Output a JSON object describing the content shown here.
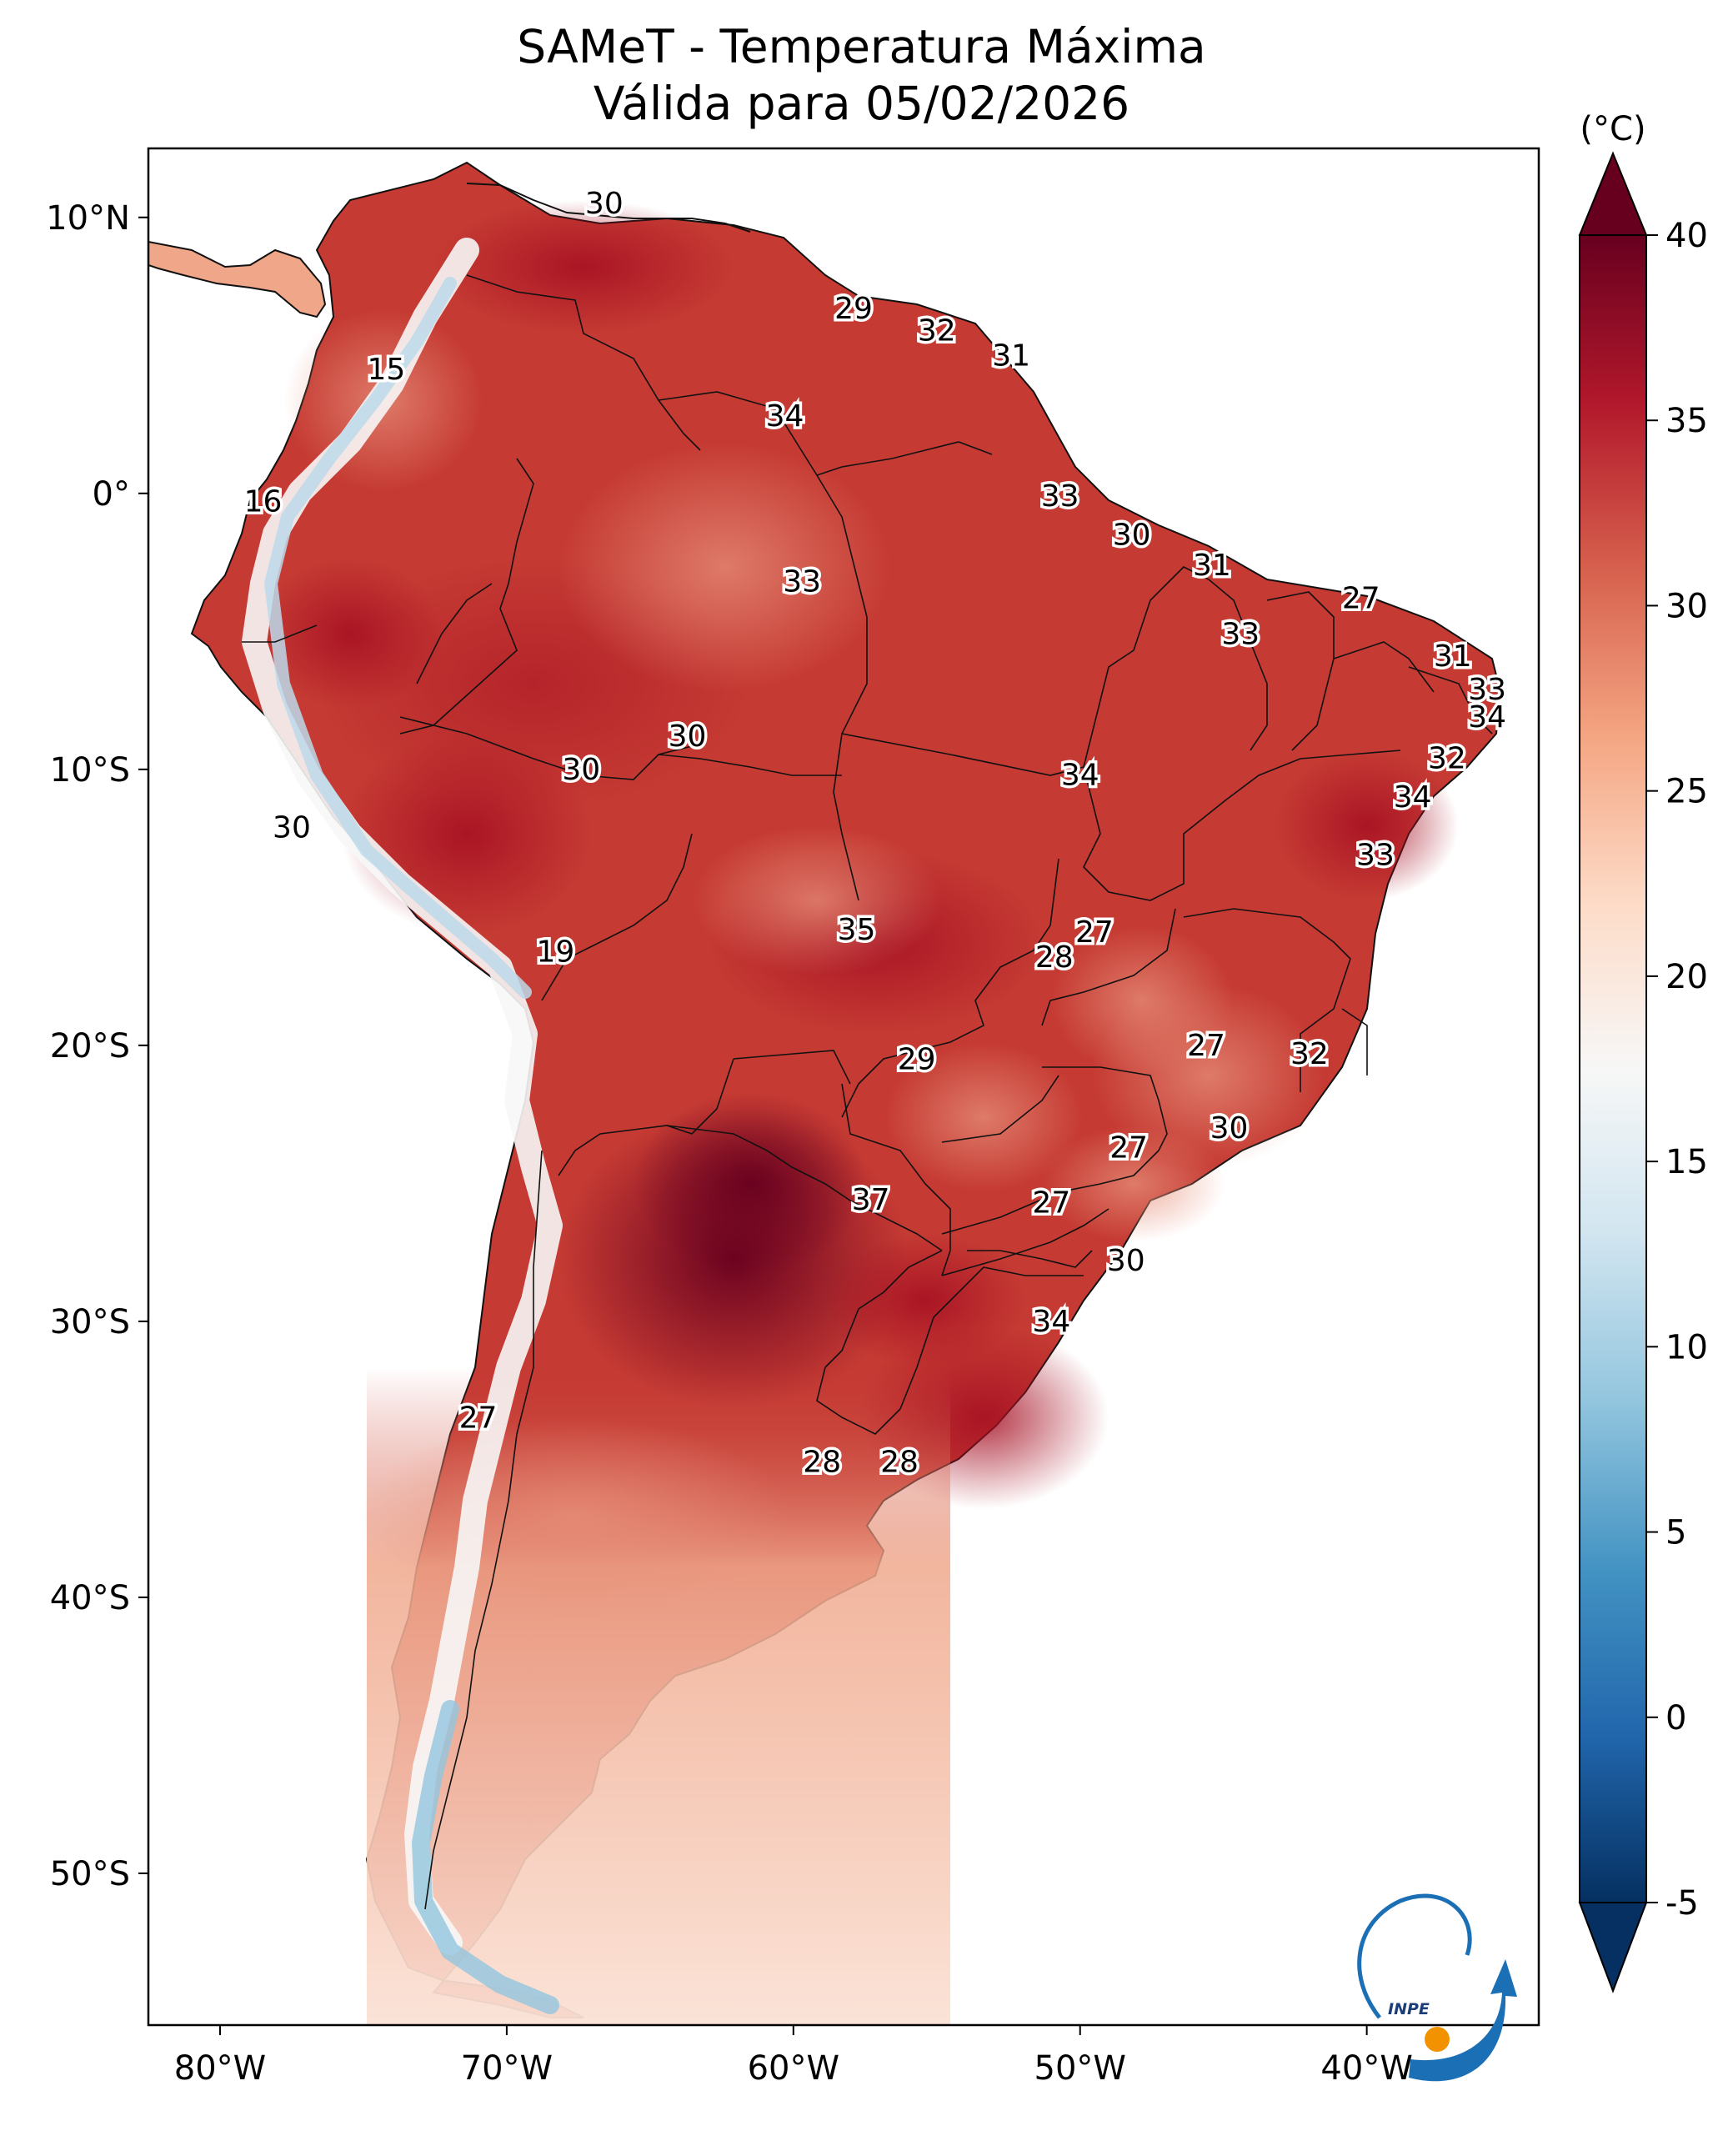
{
  "title": {
    "line1": "SAMeT - Temperatura Máxima",
    "line2": "Válida para 05/02/2026"
  },
  "colorbar": {
    "unit_label": "(°C)",
    "range": [
      -5,
      40
    ],
    "ticks": [
      "40",
      "35",
      "30",
      "25",
      "20",
      "15",
      "10",
      "5",
      "0",
      "-5"
    ],
    "extend": "both",
    "colors": [
      "#053061",
      "#2166ac",
      "#4393c3",
      "#92c5de",
      "#d1e5f0",
      "#f7f7f7",
      "#fddbc7",
      "#f4a582",
      "#d6604d",
      "#b2182b",
      "#67001f"
    ]
  },
  "axes": {
    "lat_ticks": [
      "10°N",
      "0°",
      "10°S",
      "20°S",
      "30°S",
      "40°S",
      "50°S"
    ],
    "lon_ticks": [
      "80°W",
      "70°W",
      "60°W",
      "50°W",
      "40°W"
    ]
  },
  "temperature_labels": [
    {
      "value": "30",
      "lon": -66.6,
      "lat": 10.5
    },
    {
      "value": "29",
      "lon": -57.9,
      "lat": 6.7
    },
    {
      "value": "32",
      "lon": -55.0,
      "lat": 5.9
    },
    {
      "value": "31",
      "lon": -52.4,
      "lat": 5.0
    },
    {
      "value": "15",
      "lon": -74.2,
      "lat": 4.5
    },
    {
      "value": "34",
      "lon": -60.3,
      "lat": 2.8
    },
    {
      "value": "16",
      "lon": -78.5,
      "lat": -0.3
    },
    {
      "value": "33",
      "lon": -50.7,
      "lat": -0.1
    },
    {
      "value": "30",
      "lon": -48.2,
      "lat": -1.5
    },
    {
      "value": "31",
      "lon": -45.4,
      "lat": -2.6
    },
    {
      "value": "33",
      "lon": -59.7,
      "lat": -3.2
    },
    {
      "value": "27",
      "lon": -40.2,
      "lat": -3.8
    },
    {
      "value": "33",
      "lon": -44.4,
      "lat": -5.1
    },
    {
      "value": "31",
      "lon": -37.0,
      "lat": -5.9
    },
    {
      "value": "33",
      "lon": -35.8,
      "lat": -7.1
    },
    {
      "value": "34",
      "lon": -35.8,
      "lat": -8.1
    },
    {
      "value": "30",
      "lon": -63.7,
      "lat": -8.8
    },
    {
      "value": "32",
      "lon": -37.2,
      "lat": -9.6
    },
    {
      "value": "30",
      "lon": -67.4,
      "lat": -10.0
    },
    {
      "value": "34",
      "lon": -50.0,
      "lat": -10.2
    },
    {
      "value": "34",
      "lon": -38.4,
      "lat": -11.0
    },
    {
      "value": "30",
      "lon": -77.5,
      "lat": -12.1
    },
    {
      "value": "33",
      "lon": -39.7,
      "lat": -13.1
    },
    {
      "value": "35",
      "lon": -57.8,
      "lat": -15.8
    },
    {
      "value": "27",
      "lon": -49.5,
      "lat": -15.9
    },
    {
      "value": "28",
      "lon": -50.9,
      "lat": -16.8
    },
    {
      "value": "19",
      "lon": -68.3,
      "lat": -16.6
    },
    {
      "value": "27",
      "lon": -45.6,
      "lat": -20.0
    },
    {
      "value": "32",
      "lon": -42.0,
      "lat": -20.3
    },
    {
      "value": "29",
      "lon": -55.7,
      "lat": -20.5
    },
    {
      "value": "30",
      "lon": -44.8,
      "lat": -23.0
    },
    {
      "value": "27",
      "lon": -48.3,
      "lat": -23.7
    },
    {
      "value": "37",
      "lon": -57.3,
      "lat": -25.6
    },
    {
      "value": "27",
      "lon": -51.0,
      "lat": -25.7
    },
    {
      "value": "30",
      "lon": -48.4,
      "lat": -27.8
    },
    {
      "value": "34",
      "lon": -51.0,
      "lat": -30.0
    },
    {
      "value": "27",
      "lon": -71.0,
      "lat": -33.5
    },
    {
      "value": "28",
      "lon": -59.0,
      "lat": -35.1
    },
    {
      "value": "28",
      "lon": -56.3,
      "lat": -35.1
    }
  ],
  "logo": {
    "text": "INPE"
  }
}
